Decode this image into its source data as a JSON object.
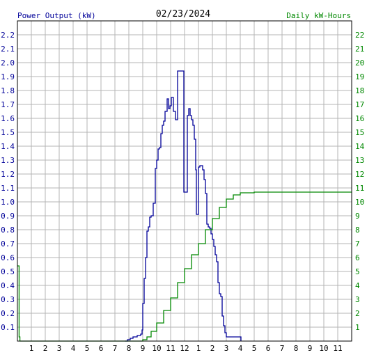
{
  "header": {
    "left_title": "Power Output (kW)",
    "date": "02/23/2024",
    "right_title": "Daily kW-Hours"
  },
  "chart_data": {
    "type": "line",
    "title": "02/23/2024",
    "grid": true,
    "x_tick_labels": [
      "1",
      "2",
      "3",
      "4",
      "5",
      "6",
      "7",
      "8",
      "9",
      "10",
      "11",
      "12",
      "1",
      "2",
      "3",
      "4",
      "5",
      "6",
      "7",
      "8",
      "9",
      "10",
      "11"
    ],
    "x_range_hours": [
      0,
      24
    ],
    "left_axis": {
      "label": "Power Output (kW)",
      "ylim": [
        0,
        2.3
      ],
      "ticks": [
        "0.1",
        "0.2",
        "0.3",
        "0.4",
        "0.5",
        "0.6",
        "0.7",
        "0.8",
        "0.9",
        "1.0",
        "1.1",
        "1.2",
        "1.3",
        "1.4",
        "1.5",
        "1.6",
        "1.7",
        "1.8",
        "1.9",
        "2.0",
        "2.1",
        "2.2"
      ],
      "color": "#000099"
    },
    "right_axis": {
      "label": "Daily kW-Hours",
      "ylim": [
        0,
        23
      ],
      "ticks": [
        "1",
        "2",
        "3",
        "4",
        "5",
        "6",
        "7",
        "8",
        "9",
        "10",
        "11",
        "12",
        "13",
        "14",
        "15",
        "16",
        "17",
        "18",
        "19",
        "20",
        "21",
        "22"
      ],
      "color": "#008800"
    },
    "series": [
      {
        "name": "Power Output (kW)",
        "color": "#000099",
        "axis": "left",
        "points": [
          [
            7.72,
            0.0
          ],
          [
            7.9,
            0.01
          ],
          [
            8.1,
            0.02
          ],
          [
            8.3,
            0.03
          ],
          [
            8.6,
            0.04
          ],
          [
            8.85,
            0.05
          ],
          [
            8.95,
            0.08
          ],
          [
            9.0,
            0.27
          ],
          [
            9.1,
            0.45
          ],
          [
            9.2,
            0.6
          ],
          [
            9.3,
            0.79
          ],
          [
            9.4,
            0.82
          ],
          [
            9.5,
            0.89
          ],
          [
            9.6,
            0.9
          ],
          [
            9.75,
            0.99
          ],
          [
            9.9,
            1.24
          ],
          [
            10.0,
            1.3
          ],
          [
            10.1,
            1.38
          ],
          [
            10.2,
            1.39
          ],
          [
            10.3,
            1.49
          ],
          [
            10.4,
            1.55
          ],
          [
            10.5,
            1.58
          ],
          [
            10.6,
            1.65
          ],
          [
            10.75,
            1.74
          ],
          [
            10.85,
            1.67
          ],
          [
            10.95,
            1.69
          ],
          [
            11.05,
            1.75
          ],
          [
            11.2,
            1.65
          ],
          [
            11.35,
            1.59
          ],
          [
            11.5,
            1.94
          ],
          [
            11.9,
            1.94
          ],
          [
            11.95,
            1.07
          ],
          [
            12.1,
            1.07
          ],
          [
            12.2,
            1.62
          ],
          [
            12.3,
            1.67
          ],
          [
            12.4,
            1.62
          ],
          [
            12.5,
            1.59
          ],
          [
            12.6,
            1.55
          ],
          [
            12.7,
            1.45
          ],
          [
            12.8,
            1.23
          ],
          [
            12.85,
            0.91
          ],
          [
            13.0,
            1.25
          ],
          [
            13.1,
            1.26
          ],
          [
            13.3,
            1.23
          ],
          [
            13.4,
            1.16
          ],
          [
            13.5,
            1.06
          ],
          [
            13.6,
            0.84
          ],
          [
            13.7,
            0.82
          ],
          [
            13.8,
            0.81
          ],
          [
            13.9,
            0.77
          ],
          [
            14.0,
            0.73
          ],
          [
            14.1,
            0.68
          ],
          [
            14.2,
            0.62
          ],
          [
            14.3,
            0.57
          ],
          [
            14.4,
            0.42
          ],
          [
            14.5,
            0.34
          ],
          [
            14.6,
            0.32
          ],
          [
            14.7,
            0.18
          ],
          [
            14.8,
            0.11
          ],
          [
            14.9,
            0.06
          ],
          [
            15.0,
            0.03
          ],
          [
            15.5,
            0.03
          ],
          [
            15.95,
            0.03
          ],
          [
            16.05,
            0.0
          ]
        ]
      },
      {
        "name": "Daily kW-Hours",
        "color": "#008800",
        "axis": "right",
        "points": [
          [
            0.0,
            5.4
          ],
          [
            0.12,
            0.3
          ],
          [
            0.18,
            0.0
          ],
          [
            8.7,
            0.0
          ],
          [
            9.0,
            0.1
          ],
          [
            9.3,
            0.3
          ],
          [
            9.6,
            0.7
          ],
          [
            10.0,
            1.3
          ],
          [
            10.5,
            2.2
          ],
          [
            11.0,
            3.1
          ],
          [
            11.5,
            4.2
          ],
          [
            12.0,
            5.2
          ],
          [
            12.5,
            6.2
          ],
          [
            13.0,
            7.0
          ],
          [
            13.5,
            8.0
          ],
          [
            14.0,
            8.8
          ],
          [
            14.5,
            9.6
          ],
          [
            15.0,
            10.2
          ],
          [
            15.5,
            10.5
          ],
          [
            16.0,
            10.65
          ],
          [
            17.0,
            10.7
          ],
          [
            24.0,
            10.7
          ]
        ]
      }
    ]
  }
}
